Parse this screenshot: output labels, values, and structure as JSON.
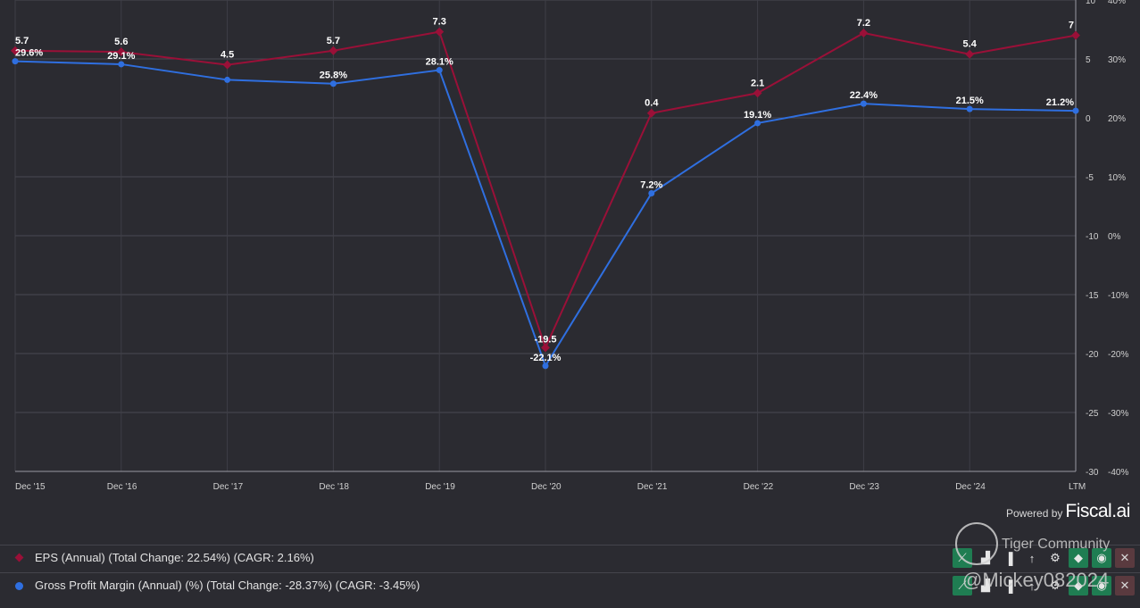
{
  "chart_data": {
    "type": "line",
    "categories": [
      "Dec '15",
      "Dec '16",
      "Dec '17",
      "Dec '18",
      "Dec '19",
      "Dec '20",
      "Dec '21",
      "Dec '22",
      "Dec '23",
      "Dec '24",
      "LTM"
    ],
    "y_left_ticks": [
      "10",
      "5",
      "0",
      "-5",
      "-10",
      "-15",
      "-20",
      "-25",
      "-30"
    ],
    "y_right_ticks": [
      "40%",
      "30%",
      "20%",
      "10%",
      "0%",
      "-10%",
      "-20%",
      "-30%",
      "-40%"
    ],
    "ylim_left": [
      -30,
      10
    ],
    "ylim_right": [
      -40,
      40
    ],
    "grid": true,
    "series": [
      {
        "name": "EPS (Annual) (Total Change: 22.54%) (CAGR: 2.16%)",
        "axis": "left",
        "color": "#9a1038",
        "values": [
          5.7,
          5.6,
          4.5,
          5.7,
          7.3,
          -19.5,
          0.4,
          2.1,
          7.2,
          5.4,
          7
        ],
        "labels": [
          "5.7",
          "5.6",
          "4.5",
          "5.7",
          "7.3",
          "-19.5",
          "0.4",
          "2.1",
          "7.2",
          "5.4",
          "7"
        ]
      },
      {
        "name": "Gross Profit Margin (Annual) (%) (Total Change: -28.37%) (CAGR: -3.45%)",
        "axis": "right",
        "color": "#2f6fe0",
        "values": [
          29.6,
          29.1,
          null,
          25.8,
          28.1,
          -22.1,
          7.2,
          19.1,
          22.4,
          21.5,
          21.2
        ],
        "labels": [
          "29.6%",
          "29.1%",
          "",
          "25.8%",
          "28.1%",
          "-22.1%",
          "7.2%",
          "19.1%",
          "22.4%",
          "21.5%",
          "21.2%"
        ]
      }
    ]
  },
  "branding": {
    "powered_by": "Powered by",
    "brand": "Fiscal.ai"
  },
  "legend": [
    {
      "text": "EPS (Annual) (Total Change: 22.54%) (CAGR: 2.16%)",
      "color": "#9a1038",
      "marker": "diamond"
    },
    {
      "text": "Gross Profit Margin (Annual) (%) (Total Change: -28.37%) (CAGR: -3.45%)",
      "color": "#2f6fe0",
      "marker": "dot"
    }
  ],
  "tool_icons": [
    "line-chart-icon",
    "bar-chart-icon",
    "bars-icon",
    "arrow-up-icon",
    "gear-icon",
    "tag-icon",
    "eye-icon",
    "close-icon"
  ],
  "watermark": {
    "line1": "Tiger Community",
    "line2": "@Mickey082024"
  }
}
